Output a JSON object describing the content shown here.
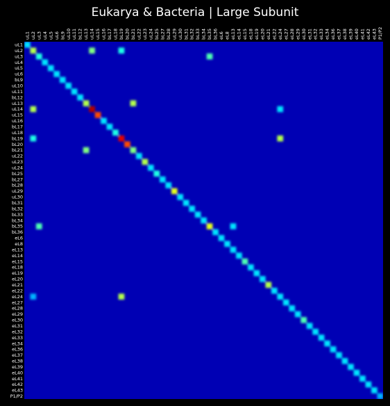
{
  "chart_data": {
    "type": "heatmap",
    "title": "Eukarya & Bacteria | Large Subunit",
    "colormap": "jet",
    "labels": [
      "uL1",
      "uL2",
      "uL3",
      "uL4",
      "uL5",
      "uL6",
      "bL9",
      "uL10",
      "uL11",
      "bL12",
      "uL13",
      "uL14",
      "uL15",
      "uL16",
      "bL17",
      "uL18",
      "bL19",
      "bL20",
      "bL21",
      "uL22",
      "uL23",
      "uL24",
      "bL25",
      "bL27",
      "bL28",
      "uL29",
      "uL30",
      "bL31",
      "bL32",
      "bL33",
      "bL34",
      "bL35",
      "bL36",
      "eL6",
      "eL8",
      "eL13",
      "eL14",
      "eL15",
      "eL18",
      "eL19",
      "eL20",
      "eL21",
      "eL22",
      "eL24",
      "eL27",
      "eL28",
      "eL29",
      "eL30",
      "eL31",
      "eL32",
      "eL33",
      "eL34",
      "eL36",
      "eL37",
      "eL38",
      "eL39",
      "eL40",
      "eL41",
      "eL42",
      "eL43",
      "P1/P2"
    ],
    "diagonal_value": 0.35,
    "background_value": 0.1,
    "hotspots": [
      {
        "row": "uL2",
        "col": "uL2",
        "value": 0.55
      },
      {
        "row": "uL2",
        "col": "uL14",
        "value": 0.5
      },
      {
        "row": "uL2",
        "col": "bL19",
        "value": 0.4
      },
      {
        "row": "uL3",
        "col": "bL35",
        "value": 0.45
      },
      {
        "row": "uL3",
        "col": "uL3",
        "value": 0.4
      },
      {
        "row": "uL13",
        "col": "uL13",
        "value": 0.55
      },
      {
        "row": "uL13",
        "col": "bL21",
        "value": 0.55
      },
      {
        "row": "uL14",
        "col": "uL2",
        "value": 0.55
      },
      {
        "row": "uL14",
        "col": "uL14",
        "value": 0.95
      },
      {
        "row": "uL15",
        "col": "uL15",
        "value": 0.8
      },
      {
        "row": "uL14",
        "col": "eL24",
        "value": 0.35
      },
      {
        "row": "uL18",
        "col": "uL18",
        "value": 0.4
      },
      {
        "row": "bL19",
        "col": "uL2",
        "value": 0.4
      },
      {
        "row": "bL19",
        "col": "bL19",
        "value": 0.9
      },
      {
        "row": "bL19",
        "col": "eL24",
        "value": 0.55
      },
      {
        "row": "bL20",
        "col": "bL20",
        "value": 0.8
      },
      {
        "row": "bL21",
        "col": "uL13",
        "value": 0.5
      },
      {
        "row": "bL21",
        "col": "bL21",
        "value": 0.5
      },
      {
        "row": "uL23",
        "col": "uL23",
        "value": 0.55
      },
      {
        "row": "bL25",
        "col": "bL25",
        "value": 0.4
      },
      {
        "row": "uL29",
        "col": "uL29",
        "value": 0.6
      },
      {
        "row": "bL31",
        "col": "bL31",
        "value": 0.35
      },
      {
        "row": "bL32",
        "col": "bL32",
        "value": 0.35
      },
      {
        "row": "bL35",
        "col": "uL3",
        "value": 0.45
      },
      {
        "row": "bL35",
        "col": "bL35",
        "value": 0.6
      },
      {
        "row": "bL35",
        "col": "eL13",
        "value": 0.35
      },
      {
        "row": "eL15",
        "col": "eL15",
        "value": 0.45
      },
      {
        "row": "eL21",
        "col": "eL21",
        "value": 0.55
      },
      {
        "row": "eL24",
        "col": "bL19",
        "value": 0.55
      },
      {
        "row": "eL24",
        "col": "uL2",
        "value": 0.3
      },
      {
        "row": "eL24",
        "col": "eL24",
        "value": 0.35
      },
      {
        "row": "eL30",
        "col": "eL30",
        "value": 0.45
      },
      {
        "row": "eL31",
        "col": "eL31",
        "value": 0.35
      },
      {
        "row": "P1/P2",
        "col": "P1/P2",
        "value": 0.3
      }
    ]
  }
}
